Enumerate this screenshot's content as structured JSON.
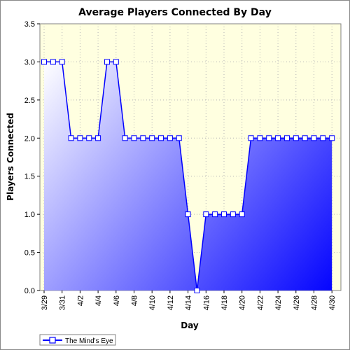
{
  "chart_data": {
    "type": "area",
    "title": "Average Players Connected By Day",
    "xlabel": "Day",
    "ylabel": "Players Connected",
    "ylim": [
      0.0,
      3.5
    ],
    "yticks": [
      "0.0",
      "0.5",
      "1.0",
      "1.5",
      "2.0",
      "2.5",
      "3.0",
      "3.5"
    ],
    "xticks": [
      "3/29",
      "3/31",
      "4/2",
      "4/4",
      "4/6",
      "4/8",
      "4/10",
      "4/12",
      "4/14",
      "4/16",
      "4/18",
      "4/20",
      "4/22",
      "4/24",
      "4/26",
      "4/28",
      "4/30"
    ],
    "grid": true,
    "legend": "bottom-left",
    "x": [
      "3/29",
      "3/30",
      "3/31",
      "4/1",
      "4/2",
      "4/3",
      "4/4",
      "4/5",
      "4/6",
      "4/7",
      "4/8",
      "4/9",
      "4/10",
      "4/11",
      "4/12",
      "4/13",
      "4/14",
      "4/15",
      "4/16",
      "4/17",
      "4/18",
      "4/19",
      "4/20",
      "4/21",
      "4/22",
      "4/23",
      "4/24",
      "4/25",
      "4/26",
      "4/27",
      "4/28",
      "4/29",
      "4/30"
    ],
    "series": [
      {
        "name": "The Mind's Eye",
        "values": [
          3,
          3,
          3,
          2,
          2,
          2,
          2,
          3,
          3,
          2,
          2,
          2,
          2,
          2,
          2,
          2,
          1,
          0,
          1,
          1,
          1,
          1,
          1,
          2,
          2,
          2,
          2,
          2,
          2,
          2,
          2,
          2,
          2
        ]
      }
    ],
    "colors": {
      "plot_background": "#ffffe0",
      "line": "#0000ff",
      "fill_light": "#ffffff",
      "fill_dark": "#0000ff",
      "grid": "#b4b4b4"
    }
  }
}
